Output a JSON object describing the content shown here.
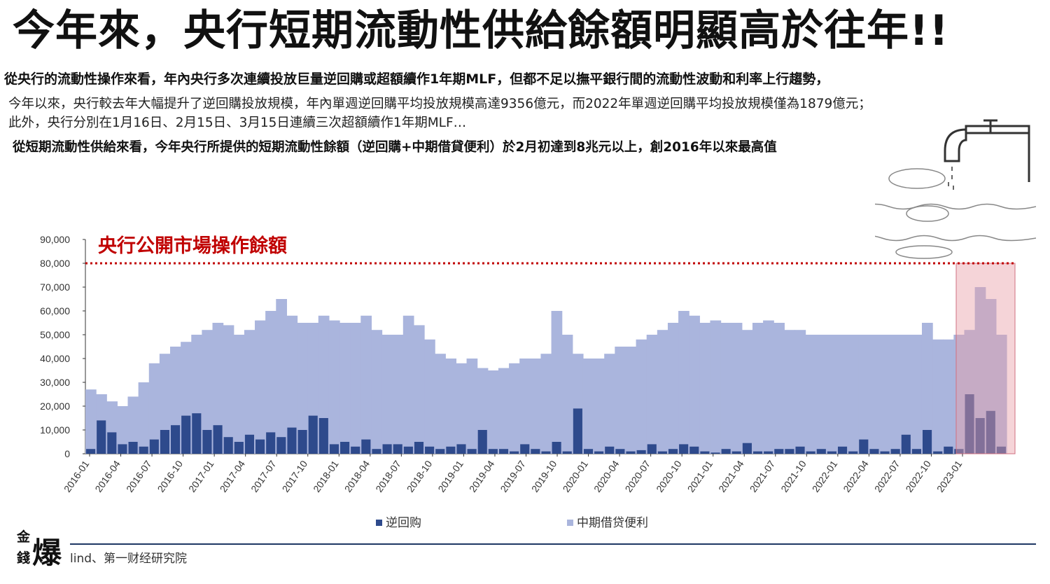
{
  "title": "今年來，央行短期流動性供給餘額明顯高於往年!!",
  "subtitle1": "從央行的流動性操作來看，年內央行多次連續投放巨量逆回購或超額續作1年期MLF，但都不足以撫平銀行間的流動性波動和利率上行趨勢，",
  "body_line1": "今年以來，央行較去年大幅提升了逆回購投放規模，年內單週逆回購平均投放規模高達9356億元，而2022年單週逆回購平均投放規模僅為1879億元；",
  "body_line2": "此外，央行分別在1月16日、2月15日、3月15日連續三次超額續作1年期MLF…",
  "subtitle2": "從短期流動性供給來看，今年央行所提供的短期流動性餘額（逆回購+中期借貸便利）於2月初達到8兆元以上，創2016年以來最高值",
  "source": "lind、第一财经研究院",
  "logo": {
    "small1": "金",
    "small2": "錢",
    "big": "爆"
  },
  "chart_data": {
    "type": "area",
    "title": "央行公開市場操作餘額",
    "ylim": [
      0,
      90000
    ],
    "yticks": [
      "90,000",
      "80,000",
      "70,000",
      "60,000",
      "50,000",
      "40,000",
      "30,000",
      "20,000",
      "10,000",
      "0"
    ],
    "xticks": [
      "2016-01",
      "2016-04",
      "2016-07",
      "2016-10",
      "2017-01",
      "2017-04",
      "2017-07",
      "2017-10",
      "2018-01",
      "2018-04",
      "2018-07",
      "2018-10",
      "2019-01",
      "2019-04",
      "2019-07",
      "2019-10",
      "2020-01",
      "2020-04",
      "2020-07",
      "2020-10",
      "2021-01",
      "2021-04",
      "2021-07",
      "2021-10",
      "2022-01",
      "2022-04",
      "2022-07",
      "2022-10",
      "2023-01"
    ],
    "reference_line": 80000,
    "series": [
      {
        "name": "逆回购",
        "color": "#2e4a8c",
        "values": [
          2000,
          14000,
          9000,
          4000,
          5000,
          3000,
          6000,
          10000,
          12000,
          16000,
          17000,
          10000,
          12000,
          7000,
          5000,
          8000,
          6000,
          9000,
          7000,
          11000,
          10000,
          16000,
          15000,
          4000,
          5000,
          3000,
          6000,
          2000,
          4000,
          4000,
          3000,
          5000,
          3000,
          2000,
          3000,
          4000,
          2000,
          10000,
          2000,
          2000,
          1000,
          4000,
          2000,
          1000,
          5000,
          1000,
          19000,
          2000,
          1000,
          3000,
          2000,
          1000,
          1500,
          4000,
          1000,
          2000,
          4000,
          3000,
          1000,
          500,
          2000,
          1000,
          4500,
          1000,
          1000,
          2000,
          2000,
          3000,
          1000,
          2000,
          1000,
          3000,
          1000,
          6000,
          2000,
          1000,
          2000,
          8000,
          2000,
          10000,
          1000,
          3000,
          2000,
          25000,
          15000,
          18000,
          3000
        ]
      },
      {
        "name": "中期借贷便利",
        "color": "#aab5dd",
        "values": [
          27000,
          25000,
          22000,
          20000,
          24000,
          30000,
          38000,
          42000,
          45000,
          47000,
          50000,
          52000,
          55000,
          54000,
          50000,
          52000,
          56000,
          60000,
          65000,
          58000,
          55000,
          55000,
          58000,
          56000,
          55000,
          55000,
          58000,
          52000,
          50000,
          50000,
          58000,
          54000,
          48000,
          42000,
          40000,
          38000,
          40000,
          36000,
          35000,
          36000,
          38000,
          40000,
          40000,
          42000,
          60000,
          50000,
          42000,
          40000,
          40000,
          42000,
          45000,
          45000,
          48000,
          50000,
          52000,
          55000,
          60000,
          58000,
          55000,
          56000,
          55000,
          55000,
          52000,
          55000,
          56000,
          55000,
          52000,
          52000,
          50000,
          50000,
          50000,
          50000,
          50000,
          50000,
          50000,
          50000,
          50000,
          50000,
          50000,
          55000,
          48000,
          48000,
          50000,
          52000,
          70000,
          65000,
          50000
        ]
      }
    ],
    "highlight_range": [
      "2022-11",
      "2023-03"
    ]
  }
}
